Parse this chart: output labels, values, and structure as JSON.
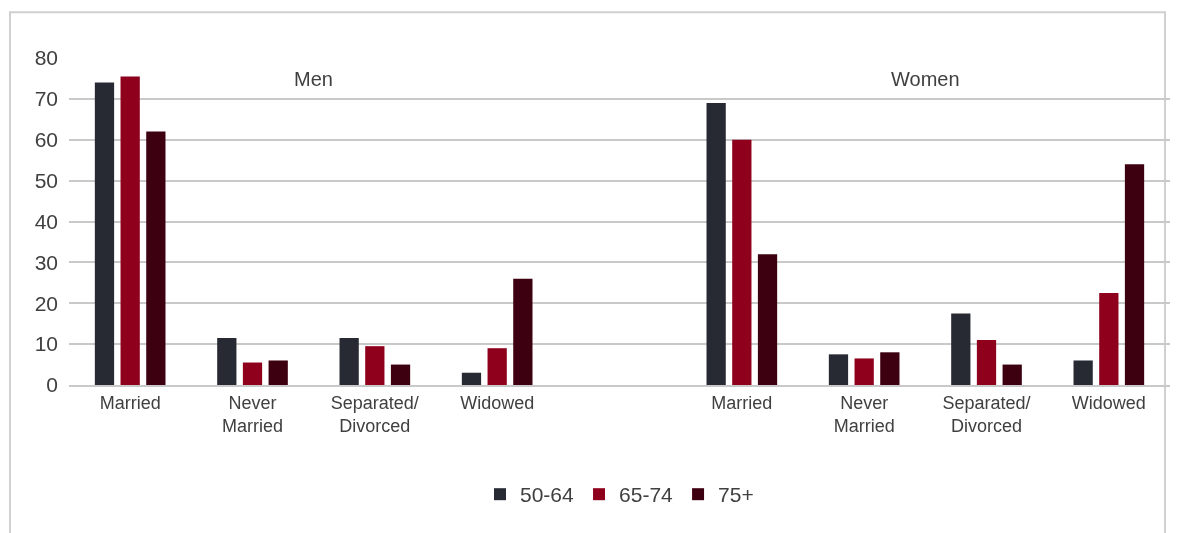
{
  "chart_data": {
    "type": "bar",
    "categories": [
      "Married",
      "Never\nMarried",
      "Separated/\nDivorced",
      "Widowed",
      null,
      "Married",
      "Never\nMarried",
      "Separated/\nDivorced",
      "Widowed"
    ],
    "series": [
      {
        "name": "50-64",
        "color": "#272a33",
        "values": [
          74,
          11.5,
          11.5,
          3,
          null,
          69,
          7.5,
          17.5,
          6
        ]
      },
      {
        "name": "65-74",
        "color": "#8f001c",
        "values": [
          75.5,
          5.5,
          9.5,
          9,
          null,
          60,
          6.5,
          11,
          22.5
        ]
      },
      {
        "name": "75+",
        "color": "#3d0010",
        "values": [
          62,
          6,
          5,
          26,
          null,
          32,
          8,
          5,
          54
        ]
      }
    ],
    "annotations": [
      "Men",
      "Women"
    ],
    "ylim": [
      0,
      80
    ],
    "yticks": [
      0,
      10,
      20,
      30,
      40,
      50,
      60,
      70,
      80
    ],
    "grid": "y",
    "legend": "bottom"
  }
}
